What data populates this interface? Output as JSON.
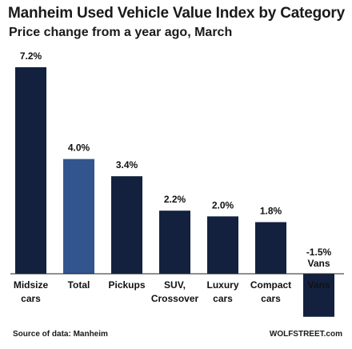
{
  "header": {
    "title": "Manheim Used Vehicle Value Index by Category",
    "subtitle": "Price change from a year ago, March"
  },
  "footer": {
    "source": "Source of data: Manheim",
    "brand": "WOLFSTREET.com"
  },
  "colors": {
    "bar": "#13213f",
    "highlight": "#33558e",
    "axis": "#222222"
  },
  "chart_data": {
    "type": "bar",
    "title": "Manheim Used Vehicle Value Index by Category",
    "subtitle": "Price change from a year ago, March",
    "xlabel": "",
    "ylabel": "",
    "unit": "%",
    "grid": false,
    "legend": "none",
    "ylim": [
      -1.5,
      7.2
    ],
    "categories": [
      [
        "Midsize",
        "cars"
      ],
      [
        "Total"
      ],
      [
        "Pickups"
      ],
      [
        "SUV,",
        "Crossover"
      ],
      [
        "Luxury",
        "cars"
      ],
      [
        "Compact",
        "cars"
      ],
      [
        "Vans"
      ]
    ],
    "values": [
      7.2,
      4.0,
      3.4,
      2.2,
      2.0,
      1.8,
      -1.5
    ],
    "value_labels": [
      "7.2%",
      "4.0%",
      "3.4%",
      "2.2%",
      "2.0%",
      "1.8%",
      "-1.5%"
    ],
    "highlight_index": 1,
    "annotations": [
      {
        "category_index": 6,
        "text": "Vans",
        "position": "above-bar"
      }
    ]
  }
}
